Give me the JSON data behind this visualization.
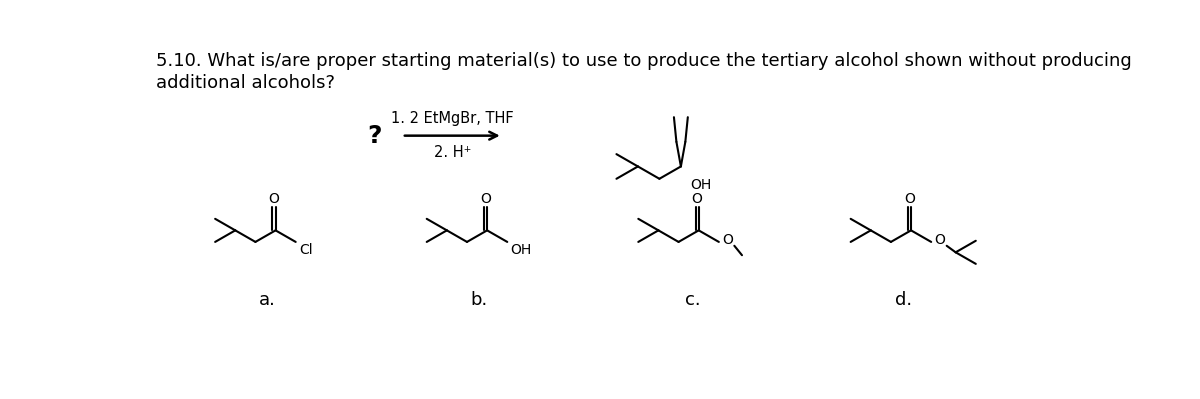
{
  "title_line1": "5.10. What is/are proper starting material(s) to use to produce the tertiary alcohol shown without producing",
  "title_line2": "additional alcohols?",
  "question_mark": "?",
  "step1": "1. 2 EtMgBr, THF",
  "step2": "2. H⁺",
  "label_a": "a.",
  "label_b": "b.",
  "label_c": "c.",
  "label_d": "d.",
  "label_Cl": "Cl",
  "label_OH": "OH",
  "label_O": "O",
  "line_color": "#000000",
  "bg_color": "#ffffff",
  "font_size_title": 13,
  "font_size_label": 13,
  "font_size_atom": 10,
  "font_size_step": 10.5
}
